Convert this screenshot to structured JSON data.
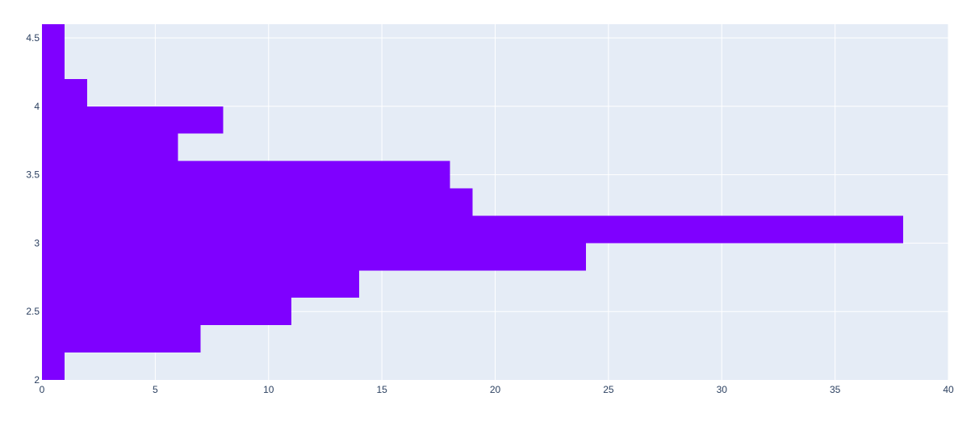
{
  "chart_data": {
    "type": "bar",
    "orientation": "horizontal",
    "title": "",
    "xlabel": "",
    "ylabel": "",
    "xlim": [
      0,
      40
    ],
    "ylim": [
      2,
      4.6
    ],
    "x_ticks": [
      0,
      5,
      10,
      15,
      20,
      25,
      30,
      35,
      40
    ],
    "y_ticks": [
      2,
      2.5,
      3,
      3.5,
      4,
      4.5
    ],
    "grid": true,
    "legend": "none",
    "bins": [
      {
        "y0": 2.0,
        "y1": 2.2,
        "count": 1
      },
      {
        "y0": 2.2,
        "y1": 2.4,
        "count": 7
      },
      {
        "y0": 2.4,
        "y1": 2.6,
        "count": 11
      },
      {
        "y0": 2.6,
        "y1": 2.8,
        "count": 14
      },
      {
        "y0": 2.8,
        "y1": 3.0,
        "count": 24
      },
      {
        "y0": 3.0,
        "y1": 3.2,
        "count": 38
      },
      {
        "y0": 3.2,
        "y1": 3.4,
        "count": 19
      },
      {
        "y0": 3.4,
        "y1": 3.6,
        "count": 18
      },
      {
        "y0": 3.6,
        "y1": 3.8,
        "count": 6
      },
      {
        "y0": 3.8,
        "y1": 4.0,
        "count": 8
      },
      {
        "y0": 4.0,
        "y1": 4.2,
        "count": 2
      },
      {
        "y0": 4.2,
        "y1": 4.4,
        "count": 1
      },
      {
        "y0": 4.4,
        "y1": 4.6,
        "count": 1
      }
    ]
  },
  "colors": {
    "bar": "#7f00ff",
    "plot_background": "#e5ecf6",
    "grid": "#ffffff",
    "tick_text": "#2a3f5f"
  }
}
